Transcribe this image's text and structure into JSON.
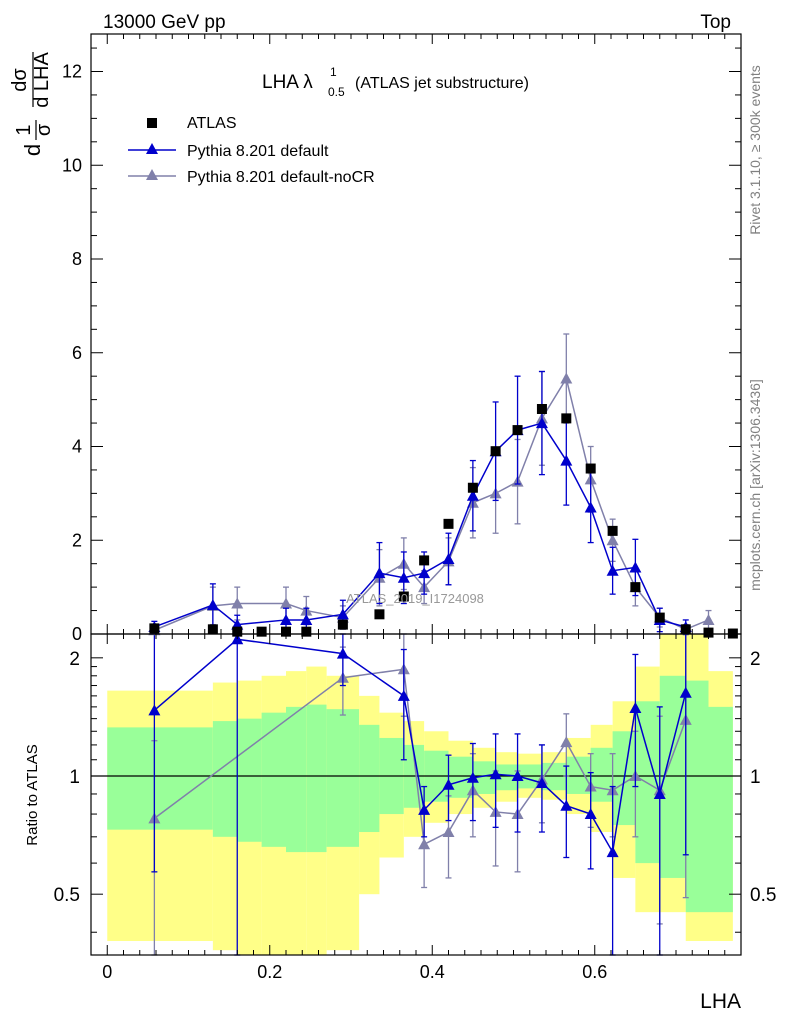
{
  "header": {
    "left": "13000 GeV pp",
    "right": "Top"
  },
  "side_labels": {
    "rivet": "Rivet 3.1.10, ≥ 300k events",
    "mcplots": "mcplots.cern.ch [arXiv:1306.3436]"
  },
  "watermark": "ATLAS_2019_I1724098",
  "chart_data": {
    "type": "line",
    "title": {
      "main": "LHA λ",
      "sup": "1",
      "sub": "0.5",
      "suffix": "(ATLAS jet substructure)"
    },
    "xlabel": "LHA",
    "ylabel": {
      "prefix": "d",
      "frac1_num": "1",
      "frac1_den": "σ",
      "frac2_num": "dσ",
      "frac2_den": "d LHA"
    },
    "ratio_ylabel": "Ratio to ATLAS",
    "xlim": [
      -0.02,
      0.78
    ],
    "ylim": [
      0,
      12.8
    ],
    "ratio_ylim": [
      0.35,
      2.3
    ],
    "x_ticks": [
      "0",
      "0.2",
      "0.4",
      "0.6"
    ],
    "y_ticks": [
      "0",
      "2",
      "4",
      "6",
      "8",
      "10",
      "12"
    ],
    "ratio_ticks": [
      "0.5",
      "1",
      "2"
    ],
    "legend": [
      "ATLAS",
      "Pythia 8.201 default",
      "Pythia 8.201 default-noCR"
    ],
    "colors": {
      "data": "#000000",
      "default": "#0000cc",
      "nocr": "#8080aa",
      "band_inner": "#99ff99",
      "band_outer": "#ffff88"
    },
    "data": {
      "x": [
        0.058,
        0.13,
        0.16,
        0.19,
        0.22,
        0.245,
        0.29,
        0.335,
        0.365,
        0.39,
        0.42,
        0.45,
        0.478,
        0.505,
        0.535,
        0.565,
        0.595,
        0.622,
        0.65,
        0.68,
        0.712,
        0.74,
        0.77
      ],
      "y": [
        0.12,
        0.1,
        0.05,
        0.05,
        0.05,
        0.05,
        0.2,
        0.42,
        0.8,
        1.57,
        2.35,
        3.12,
        3.9,
        4.35,
        4.8,
        4.6,
        3.53,
        2.2,
        1.0,
        0.35,
        0.1,
        0.03,
        0.01
      ]
    },
    "series": [
      {
        "name": "Pythia 8.201 default",
        "x": [
          0.058,
          0.13,
          0.16,
          0.22,
          0.245,
          0.29,
          0.335,
          0.365,
          0.39,
          0.42,
          0.45,
          0.478,
          0.505,
          0.535,
          0.565,
          0.595,
          0.622,
          0.65,
          0.68,
          0.712
        ],
        "y": [
          0.15,
          0.62,
          0.2,
          0.3,
          0.3,
          0.42,
          1.3,
          1.2,
          1.3,
          1.6,
          2.95,
          3.9,
          4.35,
          4.5,
          3.7,
          2.7,
          1.35,
          1.42,
          0.3,
          0.15
        ],
        "err": [
          0.12,
          0.45,
          0.2,
          0.25,
          0.25,
          0.3,
          0.65,
          0.55,
          0.45,
          0.55,
          0.75,
          1.05,
          1.15,
          1.1,
          0.95,
          0.75,
          0.5,
          0.6,
          0.25,
          0.15
        ],
        "ratio_x": [
          0.058,
          0.16,
          0.29,
          0.365,
          0.39,
          0.42,
          0.45,
          0.478,
          0.505,
          0.535,
          0.565,
          0.595,
          0.622,
          0.65,
          0.68,
          0.712
        ],
        "ratio_y": [
          1.47,
          2.23,
          2.05,
          1.6,
          0.82,
          0.95,
          0.99,
          1.01,
          1.0,
          0.96,
          0.84,
          0.8,
          0.64,
          1.49,
          0.9,
          1.63
        ],
        "ratio_err": [
          0.9,
          2.0,
          0.35,
          0.5,
          0.12,
          0.18,
          0.22,
          0.27,
          0.28,
          0.24,
          0.22,
          0.22,
          0.3,
          0.55,
          0.6,
          1.0
        ]
      },
      {
        "name": "Pythia 8.201 default-noCR",
        "x": [
          0.058,
          0.13,
          0.16,
          0.22,
          0.245,
          0.29,
          0.335,
          0.365,
          0.39,
          0.42,
          0.45,
          0.478,
          0.505,
          0.535,
          0.565,
          0.595,
          0.622,
          0.65,
          0.68,
          0.712,
          0.74
        ],
        "y": [
          0.08,
          0.6,
          0.65,
          0.65,
          0.5,
          0.35,
          1.2,
          1.5,
          1.0,
          1.55,
          2.8,
          3.0,
          3.25,
          4.6,
          5.45,
          3.3,
          2.0,
          1.0,
          0.35,
          0.1,
          0.3
        ],
        "err": [
          0.08,
          0.4,
          0.35,
          0.35,
          0.3,
          0.25,
          0.6,
          0.55,
          0.35,
          0.5,
          0.75,
          0.85,
          0.9,
          1.0,
          0.95,
          0.7,
          0.45,
          0.4,
          0.2,
          0.1,
          0.2
        ],
        "ratio_x": [
          0.058,
          0.29,
          0.365,
          0.39,
          0.42,
          0.45,
          0.478,
          0.505,
          0.535,
          0.565,
          0.595,
          0.622,
          0.65,
          0.68,
          0.712
        ],
        "ratio_y": [
          0.78,
          1.78,
          1.87,
          0.67,
          0.72,
          0.92,
          0.81,
          0.8,
          0.98,
          1.22,
          0.94,
          0.92,
          1.0,
          0.92,
          1.39
        ],
        "ratio_err": [
          0.45,
          0.35,
          0.45,
          0.15,
          0.17,
          0.22,
          0.22,
          0.23,
          0.22,
          0.22,
          0.2,
          0.22,
          0.3,
          0.5,
          0.9
        ]
      }
    ],
    "bands": {
      "edges": [
        0,
        0.058,
        0.13,
        0.16,
        0.19,
        0.22,
        0.245,
        0.27,
        0.31,
        0.335,
        0.365,
        0.39,
        0.42,
        0.45,
        0.478,
        0.505,
        0.535,
        0.565,
        0.595,
        0.622,
        0.65,
        0.68,
        0.712,
        0.74,
        0.77
      ],
      "inner_lo": [
        0.73,
        0.73,
        0.7,
        0.68,
        0.66,
        0.64,
        0.64,
        0.66,
        0.72,
        0.8,
        0.83,
        0.86,
        0.88,
        0.9,
        0.92,
        0.93,
        0.92,
        0.9,
        0.86,
        0.75,
        0.6,
        0.55,
        0.45,
        0.45
      ],
      "inner_hi": [
        1.33,
        1.33,
        1.38,
        1.4,
        1.45,
        1.5,
        1.52,
        1.48,
        1.35,
        1.25,
        1.2,
        1.16,
        1.12,
        1.09,
        1.07,
        1.07,
        1.08,
        1.12,
        1.18,
        1.3,
        1.55,
        1.8,
        1.75,
        1.5
      ],
      "outer_lo": [
        0.38,
        0.38,
        0.36,
        0.35,
        0.35,
        0.35,
        0.35,
        0.36,
        0.5,
        0.62,
        0.7,
        0.76,
        0.8,
        0.83,
        0.86,
        0.88,
        0.87,
        0.8,
        0.72,
        0.55,
        0.45,
        0.45,
        0.38,
        0.38
      ],
      "outer_hi": [
        1.65,
        1.65,
        1.73,
        1.75,
        1.8,
        1.85,
        1.9,
        1.8,
        1.6,
        1.45,
        1.38,
        1.3,
        1.23,
        1.18,
        1.15,
        1.14,
        1.15,
        1.25,
        1.35,
        1.55,
        1.9,
        2.3,
        2.3,
        1.85
      ]
    }
  }
}
